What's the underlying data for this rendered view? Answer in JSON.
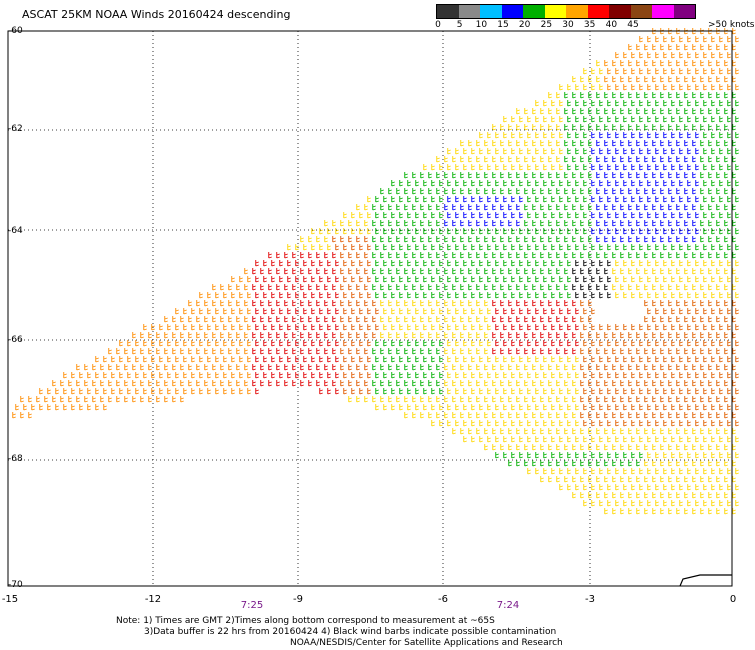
{
  "title": "ASCAT 25KM NOAA Winds 20160424 descending",
  "colorbar": {
    "colors": [
      "#333333",
      "#8a8a8a",
      "#00bfff",
      "#0000ff",
      "#00b000",
      "#ffff00",
      "#ffa500",
      "#ff0000",
      "#800000",
      "#8b4513",
      "#ff00ff",
      "#800080"
    ],
    "labels": [
      "0",
      "5",
      "10",
      "15",
      "20",
      "25",
      "30",
      "35",
      "40",
      "45",
      "&gt;50 knots"
    ],
    "labels_plain": [
      "0",
      "5",
      "10",
      "15",
      "20",
      "25",
      "30",
      "35",
      "40",
      "45",
      ">50 knots"
    ]
  },
  "lat_labels": [
    "-60",
    "-62",
    "-64",
    "-66",
    "-68",
    "-70"
  ],
  "lon_labels": [
    "-15",
    "-12",
    "-9",
    "-6",
    "-3",
    "0"
  ],
  "time_labels": [
    "7:25",
    "7:24"
  ],
  "note": {
    "line1": "Note: 1) Times are GMT 2)Times along bottom correspond to measurement at ~65S",
    "line2": "3)Data buffer is 22 hrs from 20160424 4) Black wind barbs indicate possible contamination",
    "line3": "NOAA/NESDIS/Center for Satellite Applications and Research"
  }
}
